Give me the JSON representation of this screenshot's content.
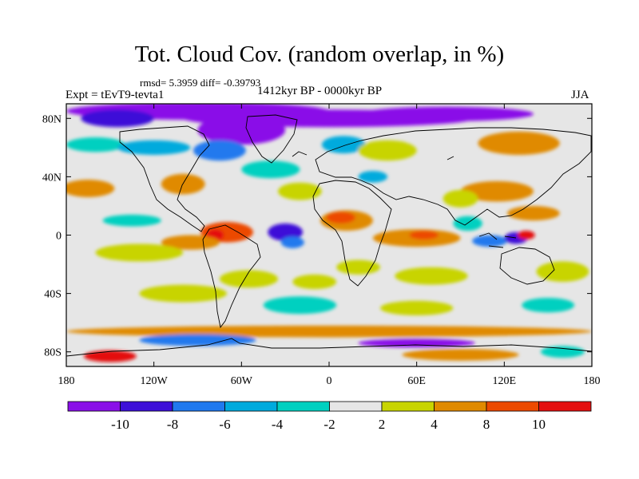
{
  "figure": {
    "title": "Tot. Cloud Cov. (random overlap, in %)",
    "stats": "rmsd= 5.3959 diff= -0.39793",
    "experiment": "Expt = tEvT9-tevta1",
    "period": "1412kyr BP - 0000kyr BP",
    "season": "JJA"
  },
  "map": {
    "lon_range": [
      -180,
      180
    ],
    "lat_range": [
      -90,
      90
    ],
    "lat_ticks": [
      {
        "value": 80,
        "label": "80N"
      },
      {
        "value": 40,
        "label": "40N"
      },
      {
        "value": 0,
        "label": "0"
      },
      {
        "value": -40,
        "label": "40S"
      },
      {
        "value": -80,
        "label": "80S"
      }
    ],
    "lon_ticks": [
      {
        "value": -180,
        "label": "180"
      },
      {
        "value": -120,
        "label": "120W"
      },
      {
        "value": -60,
        "label": "60W"
      },
      {
        "value": 0,
        "label": "0"
      },
      {
        "value": 60,
        "label": "60E"
      },
      {
        "value": 120,
        "label": "120E"
      },
      {
        "value": 180,
        "label": "180"
      }
    ],
    "background_class_color": "#e6e6e6",
    "anomaly_regions": [
      {
        "lon": -90,
        "lat": 85,
        "rx": 90,
        "ry": 6,
        "color": "#8a10e8"
      },
      {
        "lon": 0,
        "lat": 80,
        "rx": 100,
        "ry": 6,
        "color": "#8a10e8"
      },
      {
        "lon": 80,
        "lat": 83,
        "rx": 60,
        "ry": 5,
        "color": "#8a10e8"
      },
      {
        "lon": -60,
        "lat": 72,
        "rx": 30,
        "ry": 10,
        "color": "#8a10e8"
      },
      {
        "lon": -145,
        "lat": 80,
        "rx": 25,
        "ry": 6,
        "color": "#3d10d8"
      },
      {
        "lon": -75,
        "lat": 58,
        "rx": 18,
        "ry": 7,
        "color": "#2079ee"
      },
      {
        "lon": 10,
        "lat": 62,
        "rx": 15,
        "ry": 6,
        "color": "#00aadd"
      },
      {
        "lon": -160,
        "lat": 62,
        "rx": 20,
        "ry": 5,
        "color": "#00d0c0"
      },
      {
        "lon": -120,
        "lat": 60,
        "rx": 25,
        "ry": 5,
        "color": "#00aadd"
      },
      {
        "lon": -40,
        "lat": 45,
        "rx": 20,
        "ry": 6,
        "color": "#00d0c0"
      },
      {
        "lon": 30,
        "lat": 40,
        "rx": 10,
        "ry": 4,
        "color": "#00aadd"
      },
      {
        "lon": -165,
        "lat": 32,
        "rx": 18,
        "ry": 6,
        "color": "#e08a00"
      },
      {
        "lon": -100,
        "lat": 35,
        "rx": 15,
        "ry": 7,
        "color": "#e08a00"
      },
      {
        "lon": 130,
        "lat": 63,
        "rx": 28,
        "ry": 8,
        "color": "#e08a00"
      },
      {
        "lon": 115,
        "lat": 30,
        "rx": 25,
        "ry": 7,
        "color": "#e08a00"
      },
      {
        "lon": 140,
        "lat": 15,
        "rx": 18,
        "ry": 5,
        "color": "#e08a00"
      },
      {
        "lon": 90,
        "lat": 25,
        "rx": 12,
        "ry": 6,
        "color": "#c8d400"
      },
      {
        "lon": 40,
        "lat": 58,
        "rx": 20,
        "ry": 7,
        "color": "#c8d400"
      },
      {
        "lon": -20,
        "lat": 30,
        "rx": 15,
        "ry": 6,
        "color": "#c8d400"
      },
      {
        "lon": 12,
        "lat": 10,
        "rx": 18,
        "ry": 7,
        "color": "#e08a00"
      },
      {
        "lon": 8,
        "lat": 12,
        "rx": 10,
        "ry": 4,
        "color": "#ec4a00"
      },
      {
        "lon": -70,
        "lat": 2,
        "rx": 18,
        "ry": 7,
        "color": "#ec4a00"
      },
      {
        "lon": -78,
        "lat": 0,
        "rx": 6,
        "ry": 4,
        "color": "#e41010"
      },
      {
        "lon": -95,
        "lat": -5,
        "rx": 20,
        "ry": 5,
        "color": "#e08a00"
      },
      {
        "lon": -130,
        "lat": -12,
        "rx": 30,
        "ry": 6,
        "color": "#c8d400"
      },
      {
        "lon": -135,
        "lat": 10,
        "rx": 20,
        "ry": 4,
        "color": "#00d0c0"
      },
      {
        "lon": -30,
        "lat": 2,
        "rx": 12,
        "ry": 6,
        "color": "#3d10d8"
      },
      {
        "lon": -25,
        "lat": -5,
        "rx": 8,
        "ry": 4,
        "color": "#2079ee"
      },
      {
        "lon": 60,
        "lat": -2,
        "rx": 30,
        "ry": 6,
        "color": "#e08a00"
      },
      {
        "lon": 65,
        "lat": 0,
        "rx": 10,
        "ry": 3,
        "color": "#ec4a00"
      },
      {
        "lon": 110,
        "lat": -4,
        "rx": 12,
        "ry": 4,
        "color": "#2079ee"
      },
      {
        "lon": 128,
        "lat": -2,
        "rx": 8,
        "ry": 4,
        "color": "#3d10d8"
      },
      {
        "lon": 95,
        "lat": 8,
        "rx": 10,
        "ry": 5,
        "color": "#00d0c0"
      },
      {
        "lon": 135,
        "lat": 0,
        "rx": 6,
        "ry": 3,
        "color": "#e41010"
      },
      {
        "lon": 20,
        "lat": -22,
        "rx": 15,
        "ry": 5,
        "color": "#c8d400"
      },
      {
        "lon": 70,
        "lat": -28,
        "rx": 25,
        "ry": 6,
        "color": "#c8d400"
      },
      {
        "lon": -10,
        "lat": -32,
        "rx": 15,
        "ry": 5,
        "color": "#c8d400"
      },
      {
        "lon": -55,
        "lat": -30,
        "rx": 20,
        "ry": 6,
        "color": "#c8d400"
      },
      {
        "lon": 160,
        "lat": -25,
        "rx": 18,
        "ry": 7,
        "color": "#c8d400"
      },
      {
        "lon": -100,
        "lat": -40,
        "rx": 30,
        "ry": 6,
        "color": "#c8d400"
      },
      {
        "lon": -20,
        "lat": -48,
        "rx": 25,
        "ry": 6,
        "color": "#00d0c0"
      },
      {
        "lon": 60,
        "lat": -50,
        "rx": 25,
        "ry": 5,
        "color": "#c8d400"
      },
      {
        "lon": 150,
        "lat": -48,
        "rx": 18,
        "ry": 5,
        "color": "#00d0c0"
      },
      {
        "lon": 0,
        "lat": -66,
        "rx": 180,
        "ry": 4,
        "color": "#e08a00"
      },
      {
        "lon": -90,
        "lat": -72,
        "rx": 40,
        "ry": 4,
        "color": "#2079ee"
      },
      {
        "lon": 60,
        "lat": -74,
        "rx": 40,
        "ry": 3,
        "color": "#8a10e8"
      },
      {
        "lon": -150,
        "lat": -83,
        "rx": 18,
        "ry": 4,
        "color": "#e41010"
      },
      {
        "lon": 90,
        "lat": -82,
        "rx": 40,
        "ry": 4,
        "color": "#e08a00"
      },
      {
        "lon": 160,
        "lat": -80,
        "rx": 15,
        "ry": 4,
        "color": "#00d0c0"
      }
    ]
  },
  "colorbar": {
    "colors": [
      "#8a10e8",
      "#3d10d8",
      "#2079ee",
      "#00aadd",
      "#00d0c0",
      "#e6e6e6",
      "#c8d400",
      "#e08a00",
      "#ec4a00",
      "#e41010"
    ],
    "labels": [
      "-10",
      "-8",
      "-6",
      "-4",
      "-2",
      "2",
      "4",
      "8",
      "10"
    ]
  }
}
